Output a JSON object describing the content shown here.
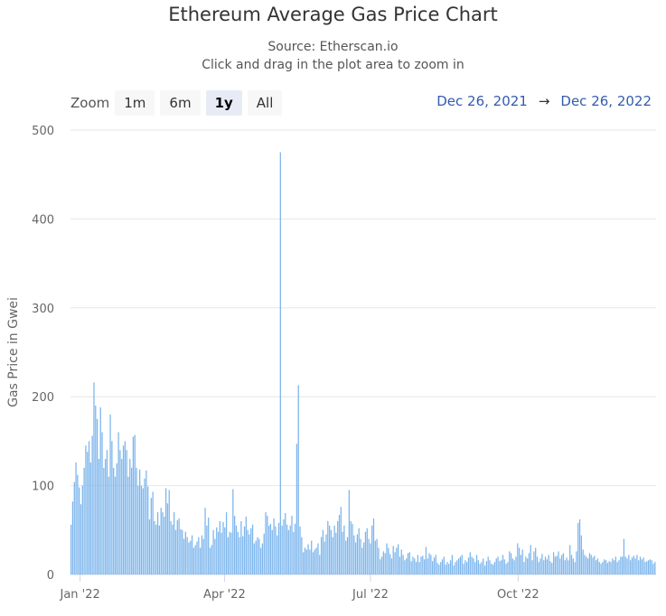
{
  "header": {
    "title": "Ethereum Average Gas Price Chart",
    "source": "Source: Etherscan.io",
    "hint": "Click and drag in the plot area to zoom in"
  },
  "zoom": {
    "label": "Zoom",
    "buttons": [
      "1m",
      "6m",
      "1y",
      "All"
    ],
    "active": "1y"
  },
  "range": {
    "from": "Dec 26, 2021",
    "arrow": "→",
    "to": "Dec 26, 2022"
  },
  "colors": {
    "bar": "#7cb5ec",
    "grid": "#e6e6e6",
    "axis_text": "#666666",
    "range_text": "#335cad"
  },
  "chart_data": {
    "type": "bar",
    "ylabel": "Gas Price in Gwei",
    "ylim": [
      0,
      500
    ],
    "y_ticks": [
      0,
      100,
      200,
      300,
      400,
      500
    ],
    "x_tick_labels": [
      "Jan '22",
      "Apr '22",
      "Jul '22",
      "Oct '22"
    ],
    "x_tick_dates": [
      "2022-01-01",
      "2022-04-01",
      "2022-07-01",
      "2022-10-01"
    ],
    "x_start": "2021-12-26",
    "x_end": "2022-12-26",
    "grid": true,
    "legend": "none",
    "series": [
      {
        "values": [
          56,
          82,
          104,
          126,
          112,
          98,
          79,
          100,
          120,
          145,
          138,
          150,
          126,
          156,
          216,
          190,
          175,
          130,
          188,
          160,
          120,
          130,
          140,
          110,
          180,
          150,
          120,
          110,
          125,
          160,
          140,
          130,
          145,
          150,
          140,
          110,
          130,
          120,
          155,
          157,
          120,
          100,
          118,
          100,
          97,
          108,
          117,
          99,
          62,
          86,
          93,
          60,
          56,
          70,
          55,
          75,
          70,
          65,
          97,
          80,
          95,
          60,
          56,
          70,
          50,
          61,
          63,
          51,
          50,
          40,
          48,
          42,
          36,
          38,
          44,
          30,
          33,
          37,
          42,
          30,
          44,
          40,
          75,
          55,
          64,
          30,
          33,
          50,
          40,
          53,
          48,
          60,
          47,
          59,
          53,
          70,
          42,
          48,
          47,
          96,
          66,
          55,
          48,
          42,
          60,
          43,
          54,
          65,
          50,
          45,
          52,
          56,
          35,
          38,
          42,
          40,
          30,
          35,
          46,
          70,
          66,
          55,
          57,
          50,
          63,
          54,
          44,
          58,
          475,
          55,
          62,
          69,
          56,
          50,
          55,
          66,
          48,
          57,
          147,
          213,
          54,
          42,
          25,
          30,
          28,
          34,
          28,
          38,
          25,
          28,
          30,
          35,
          22,
          42,
          50,
          37,
          45,
          60,
          55,
          50,
          42,
          55,
          47,
          60,
          67,
          76,
          48,
          55,
          38,
          42,
          95,
          60,
          57,
          44,
          36,
          45,
          52,
          40,
          30,
          36,
          48,
          52,
          40,
          35,
          55,
          63,
          38,
          40,
          30,
          17,
          20,
          26,
          24,
          35,
          30,
          23,
          18,
          32,
          25,
          30,
          34,
          20,
          28,
          22,
          16,
          18,
          24,
          25,
          15,
          20,
          18,
          14,
          22,
          14,
          20,
          21,
          17,
          31,
          18,
          24,
          22,
          15,
          19,
          22,
          13,
          11,
          14,
          17,
          20,
          11,
          14,
          12,
          16,
          22,
          10,
          14,
          16,
          18,
          20,
          22,
          12,
          16,
          14,
          19,
          25,
          20,
          18,
          14,
          22,
          16,
          12,
          14,
          18,
          10,
          15,
          20,
          16,
          12,
          11,
          14,
          18,
          20,
          15,
          16,
          22,
          17,
          12,
          14,
          26,
          24,
          18,
          16,
          20,
          35,
          30,
          22,
          28,
          14,
          20,
          18,
          24,
          33,
          16,
          26,
          30,
          20,
          14,
          18,
          23,
          16,
          20,
          17,
          22,
          15,
          13,
          25,
          20,
          21,
          26,
          18,
          22,
          24,
          16,
          19,
          16,
          33,
          22,
          18,
          14,
          26,
          58,
          62,
          44,
          28,
          22,
          20,
          18,
          24,
          22,
          19,
          21,
          16,
          18,
          14,
          12,
          14,
          17,
          16,
          13,
          15,
          14,
          18,
          16,
          20,
          14,
          16,
          20,
          20,
          40,
          20,
          18,
          22,
          16,
          19,
          21,
          18,
          22,
          16,
          20,
          17,
          19,
          14,
          15,
          16,
          17,
          16,
          12,
          14
        ]
      }
    ]
  }
}
